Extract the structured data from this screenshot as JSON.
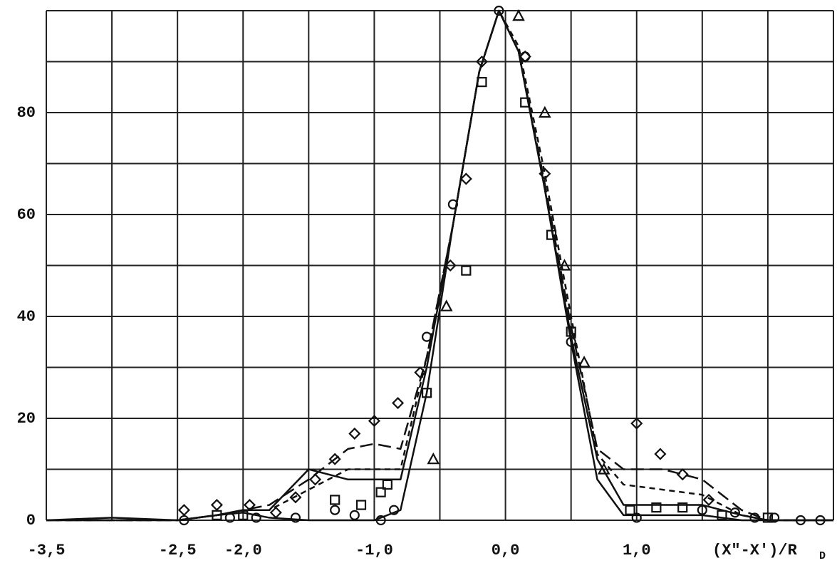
{
  "chart_data": {
    "type": "line",
    "xlabel": "(X\"-X')/R",
    "xlabel_sub": "D",
    "xlim": [
      -3.5,
      2.5
    ],
    "ylim": [
      0,
      100
    ],
    "xticks": [
      {
        "value": -3.5,
        "label": "-3,5"
      },
      {
        "value": -2.5,
        "label": "-2,5"
      },
      {
        "value": -2.0,
        "label": "-2,0"
      },
      {
        "value": -1.0,
        "label": "-1,0"
      },
      {
        "value": 0.0,
        "label": "0,0"
      },
      {
        "value": 1.0,
        "label": "1,0"
      }
    ],
    "yticks": [
      0,
      20,
      40,
      60,
      80
    ],
    "xgrid": [
      -3.5,
      -3.0,
      -2.5,
      -2.0,
      -1.5,
      -1.0,
      -0.5,
      0.0,
      0.5,
      1.0,
      1.5,
      2.0,
      2.5
    ],
    "ygrid": [
      0,
      10,
      20,
      30,
      40,
      50,
      60,
      70,
      80,
      90,
      100
    ],
    "grid": true,
    "color": "#111111",
    "series": [
      {
        "style": "solid",
        "x": [
          -3.5,
          -3.0,
          -2.5,
          -2.2,
          -2.0,
          -1.8,
          -1.5,
          -1.2,
          -1.0,
          -0.8,
          -0.6,
          -0.4,
          -0.2,
          -0.05,
          0.1,
          0.3,
          0.5,
          0.7,
          0.9,
          1.2,
          1.5,
          1.8,
          2.0,
          2.5
        ],
        "values": [
          0,
          0.5,
          0,
          1,
          1.5,
          0.5,
          0,
          0,
          0,
          2,
          25,
          58,
          88,
          100,
          92,
          65,
          35,
          8,
          1,
          1,
          1,
          0,
          0,
          0
        ]
      },
      {
        "style": "longdash",
        "x": [
          -3.5,
          -3.0,
          -2.5,
          -2.2,
          -2.0,
          -1.8,
          -1.5,
          -1.2,
          -1.0,
          -0.8,
          -0.6,
          -0.4,
          -0.2,
          -0.05,
          0.1,
          0.3,
          0.5,
          0.7,
          0.9,
          1.2,
          1.5,
          1.8,
          2.0,
          2.5
        ],
        "values": [
          0,
          0,
          0,
          1,
          2,
          3,
          8,
          14,
          15,
          14,
          32,
          58,
          88,
          100,
          92,
          66,
          38,
          14,
          10,
          10,
          8,
          2,
          0,
          0
        ]
      },
      {
        "style": "shortdash",
        "x": [
          -3.5,
          -3.0,
          -2.5,
          -2.2,
          -2.0,
          -1.8,
          -1.5,
          -1.2,
          -1.0,
          -0.8,
          -0.6,
          -0.4,
          -0.2,
          -0.05,
          0.1,
          0.3,
          0.5,
          0.7,
          0.9,
          1.2,
          1.5,
          1.8,
          2.0,
          2.5
        ],
        "values": [
          0,
          0,
          0,
          1,
          2,
          2,
          6,
          10,
          10,
          10,
          32,
          58,
          88,
          100,
          93,
          68,
          40,
          13,
          7,
          6,
          5,
          1,
          0,
          0
        ]
      },
      {
        "style": "solid",
        "x": [
          -3.5,
          -3.0,
          -2.5,
          -2.2,
          -2.0,
          -1.8,
          -1.5,
          -1.2,
          -1.0,
          -0.8,
          -0.6,
          -0.4,
          -0.2,
          -0.05,
          0.1,
          0.3,
          0.5,
          0.7,
          0.9,
          1.2,
          1.5,
          1.8,
          2.0,
          2.5
        ],
        "values": [
          0,
          0,
          0,
          1,
          2,
          2,
          10,
          8,
          8,
          8,
          30,
          58,
          88,
          100,
          92,
          65,
          36,
          12,
          3,
          3,
          3,
          1,
          0,
          0
        ]
      },
      {
        "marker": "diamond",
        "x": [
          -2.45,
          -2.2,
          -1.95,
          -1.75,
          -1.6,
          -1.45,
          -1.3,
          -1.15,
          -1.0,
          -0.82,
          -0.65,
          -0.42,
          -0.3,
          -0.18,
          0.15,
          0.3,
          1.0,
          1.18,
          1.35,
          1.55
        ],
        "values": [
          2,
          3,
          3,
          1.5,
          4.5,
          8,
          12,
          17,
          19.5,
          23,
          29,
          50,
          67,
          90,
          91,
          68,
          19,
          13,
          9,
          4
        ]
      },
      {
        "marker": "square",
        "x": [
          -2.2,
          -2.0,
          -1.3,
          -1.1,
          -0.95,
          -0.9,
          -0.6,
          -0.3,
          -0.18,
          0.15,
          0.35,
          0.5,
          0.95,
          1.15,
          1.35,
          1.65,
          2.0
        ],
        "values": [
          1,
          1,
          4,
          3,
          5.5,
          7,
          25,
          49,
          86,
          82,
          56,
          37,
          2,
          2.5,
          2.5,
          1,
          0.5
        ]
      },
      {
        "marker": "circle",
        "x": [
          -2.45,
          -2.1,
          -1.9,
          -1.6,
          -1.3,
          -1.15,
          -0.95,
          -0.85,
          -0.6,
          -0.4,
          -0.05,
          0.15,
          0.5,
          1.0,
          1.5,
          1.75,
          1.9,
          2.05,
          2.25,
          2.4
        ],
        "values": [
          0,
          0.5,
          0.5,
          0.5,
          2,
          1,
          0,
          2,
          36,
          62,
          100,
          91,
          35,
          0.5,
          2,
          1.5,
          0.5,
          0.5,
          0,
          0
        ]
      },
      {
        "marker": "triangle",
        "x": [
          -0.55,
          -0.45,
          0.1,
          0.3,
          0.45,
          0.6,
          0.75
        ],
        "values": [
          12,
          42,
          99,
          80,
          50,
          31,
          10
        ]
      }
    ]
  }
}
